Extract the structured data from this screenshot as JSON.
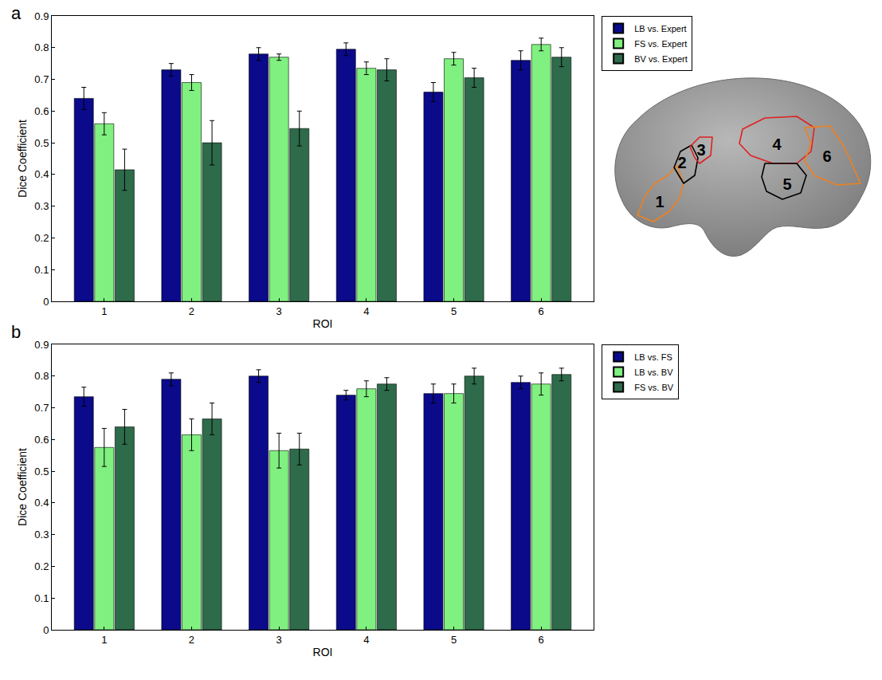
{
  "chart_data": [
    {
      "type": "bar",
      "panel_label": "a",
      "categories": [
        "1",
        "2",
        "3",
        "4",
        "5",
        "6"
      ],
      "x_label": "ROI",
      "y_label": "Dice Coefficient",
      "ylim": [
        0,
        0.9
      ],
      "yticks": [
        0,
        0.1,
        0.2,
        0.3,
        0.4,
        0.5,
        0.6,
        0.7,
        0.8,
        0.9
      ],
      "grid": false,
      "legend": "right",
      "series": [
        {
          "name": "LB vs. Expert",
          "color": "#0a0a8a",
          "values": [
            0.64,
            0.73,
            0.78,
            0.795,
            0.66,
            0.76
          ],
          "errors": [
            0.035,
            0.02,
            0.02,
            0.02,
            0.03,
            0.03
          ]
        },
        {
          "name": "FS vs. Expert",
          "color": "#80f080",
          "values": [
            0.56,
            0.69,
            0.77,
            0.735,
            0.765,
            0.81
          ],
          "errors": [
            0.035,
            0.025,
            0.01,
            0.02,
            0.02,
            0.02
          ]
        },
        {
          "name": "BV vs. Expert",
          "color": "#2e6b4b",
          "values": [
            0.415,
            0.5,
            0.545,
            0.73,
            0.705,
            0.77
          ],
          "errors": [
            0.065,
            0.07,
            0.055,
            0.035,
            0.03,
            0.03
          ]
        }
      ]
    },
    {
      "type": "bar",
      "panel_label": "b",
      "categories": [
        "1",
        "2",
        "3",
        "4",
        "5",
        "6"
      ],
      "x_label": "ROI",
      "y_label": "Dice Coefficient",
      "ylim": [
        0,
        0.9
      ],
      "yticks": [
        0,
        0.1,
        0.2,
        0.3,
        0.4,
        0.5,
        0.6,
        0.7,
        0.8,
        0.9
      ],
      "grid": false,
      "legend": "right",
      "series": [
        {
          "name": "LB vs. FS",
          "color": "#0a0a8a",
          "values": [
            0.735,
            0.79,
            0.8,
            0.74,
            0.745,
            0.78
          ],
          "errors": [
            0.03,
            0.02,
            0.02,
            0.015,
            0.03,
            0.02
          ]
        },
        {
          "name": "LB vs. BV",
          "color": "#80f080",
          "values": [
            0.575,
            0.615,
            0.565,
            0.76,
            0.745,
            0.775
          ],
          "errors": [
            0.06,
            0.05,
            0.055,
            0.025,
            0.03,
            0.035
          ]
        },
        {
          "name": "FS vs. BV",
          "color": "#2e6b4b",
          "values": [
            0.64,
            0.665,
            0.57,
            0.775,
            0.8,
            0.805
          ],
          "errors": [
            0.055,
            0.05,
            0.05,
            0.02,
            0.025,
            0.02
          ]
        }
      ]
    }
  ],
  "diagram": {
    "roi_labels": [
      "1",
      "2",
      "3",
      "4",
      "5",
      "6"
    ]
  }
}
